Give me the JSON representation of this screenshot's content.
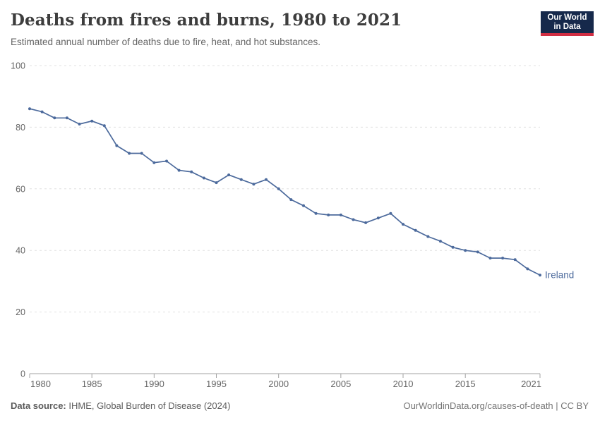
{
  "header": {
    "title": "Deaths from fires and burns, 1980 to 2021",
    "subtitle": "Estimated annual number of deaths due to fire, heat, and hot substances."
  },
  "logo": {
    "line1": "Our World",
    "line2": "in Data",
    "bg_color": "#16294b",
    "accent_color": "#d12e43"
  },
  "footer": {
    "source_label": "Data source:",
    "source_text": " IHME, Global Burden of Disease (2024)",
    "credit": "OurWorldinData.org/causes-of-death | CC BY"
  },
  "chart_data": {
    "type": "line",
    "title": "Deaths from fires and burns, 1980 to 2021",
    "subtitle": "Estimated annual number of deaths due to fire, heat, and hot substances.",
    "x": [
      1980,
      1981,
      1982,
      1983,
      1984,
      1985,
      1986,
      1987,
      1988,
      1989,
      1990,
      1991,
      1992,
      1993,
      1994,
      1995,
      1996,
      1997,
      1998,
      1999,
      2000,
      2001,
      2002,
      2003,
      2004,
      2005,
      2006,
      2007,
      2008,
      2009,
      2010,
      2011,
      2012,
      2013,
      2014,
      2015,
      2016,
      2017,
      2018,
      2019,
      2020,
      2021
    ],
    "series": [
      {
        "name": "Ireland",
        "color": "#4C6A9C",
        "values": [
          86,
          85,
          83,
          83,
          81,
          82,
          80.5,
          74,
          71.5,
          71.5,
          68.5,
          69,
          66,
          65.5,
          63.5,
          62,
          64.5,
          63,
          61.5,
          63,
          60,
          56.5,
          54.5,
          52,
          51.5,
          51.5,
          50,
          49,
          50.5,
          52,
          48.5,
          46.5,
          44.5,
          43,
          41,
          40,
          39.5,
          37.5,
          37.5,
          37,
          34,
          32
        ]
      }
    ],
    "xlim": [
      1980,
      2021
    ],
    "ylim": [
      0,
      100
    ],
    "yticks": [
      0,
      20,
      40,
      60,
      80,
      100
    ],
    "xticks": [
      1980,
      1985,
      1990,
      1995,
      2000,
      2005,
      2010,
      2015,
      2021
    ],
    "xlabel": "",
    "ylabel": "",
    "grid": "horizontal-dashed",
    "legend_position": "end-of-line-label",
    "marker": "dot"
  }
}
